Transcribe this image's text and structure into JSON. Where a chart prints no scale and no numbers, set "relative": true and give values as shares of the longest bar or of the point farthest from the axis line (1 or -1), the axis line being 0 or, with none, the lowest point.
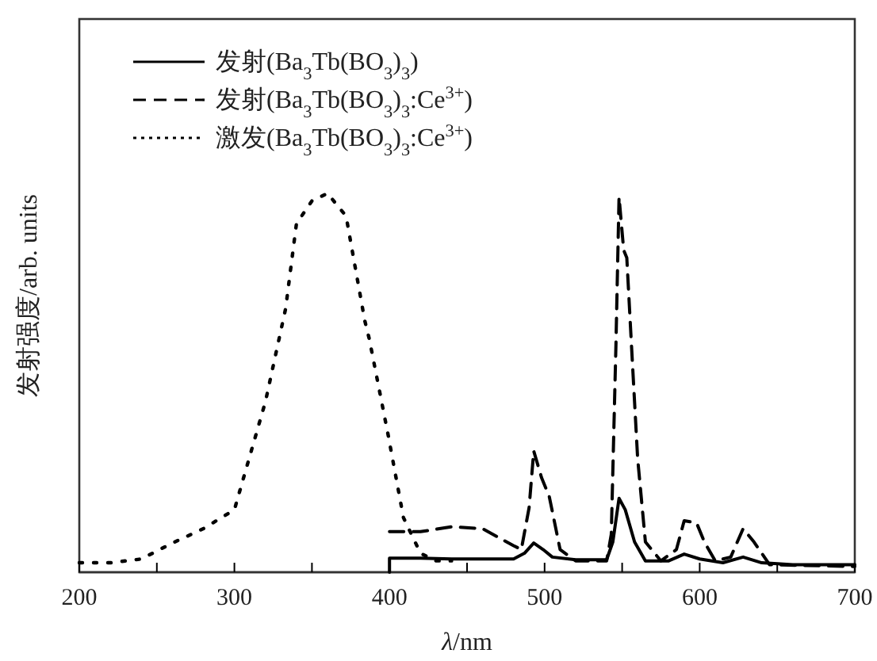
{
  "chart_data": {
    "type": "line",
    "relative": true,
    "xlabel": "λ/nm",
    "ylabel": "发射强度/arb. units",
    "xlim": [
      200,
      700
    ],
    "xticks": [
      200,
      {
        "value": 250,
        "label": null
      },
      300,
      {
        "value": 350,
        "label": null
      },
      400,
      {
        "value": 450,
        "label": null
      },
      500,
      {
        "value": 550,
        "label": null
      },
      600,
      {
        "value": 650,
        "label": null
      },
      700
    ],
    "legend": "top left",
    "tick_labels": "x",
    "series": [
      {
        "name": "发射(Ba$_{3}$Tb(BO$_{3}$)$_{3}$)",
        "color": "#000000",
        "line_style": "solid",
        "x": [
          400,
          400,
          420,
          440,
          460,
          480,
          487,
          493,
          499,
          505,
          520,
          540,
          544,
          548,
          552,
          558,
          565,
          580,
          590,
          600,
          615,
          628,
          640,
          660,
          700
        ],
        "values": [
          0,
          0.037,
          0.037,
          0.035,
          0.035,
          0.035,
          0.05,
          0.077,
          0.06,
          0.04,
          0.033,
          0.033,
          0.08,
          0.195,
          0.165,
          0.08,
          0.03,
          0.03,
          0.048,
          0.035,
          0.025,
          0.04,
          0.025,
          0.02,
          0.02
        ]
      },
      {
        "name": "发射(Ba$_{3}$Tb(BO$_{3}$)$_{3}$:Ce$^{3+}$)",
        "color": "#000000",
        "line_style": "dashed",
        "x": [
          400,
          420,
          440,
          460,
          480,
          485,
          490,
          493,
          498,
          503,
          510,
          520,
          540,
          543,
          546,
          548,
          551,
          553,
          556,
          560,
          565,
          575,
          585,
          590,
          598,
          603,
          610,
          620,
          628,
          635,
          645,
          700
        ],
        "values": [
          0.107,
          0.107,
          0.12,
          0.115,
          0.07,
          0.06,
          0.17,
          0.32,
          0.25,
          0.2,
          0.06,
          0.03,
          0.03,
          0.1,
          0.6,
          0.99,
          0.85,
          0.83,
          0.6,
          0.3,
          0.08,
          0.03,
          0.06,
          0.136,
          0.13,
          0.08,
          0.03,
          0.04,
          0.115,
          0.08,
          0.02,
          0.015
        ]
      },
      {
        "name": "激发(Ba$_{3}$Tb(BO$_{3}$)$_{3}$:Ce$^{3+}$)",
        "color": "#000000",
        "line_style": "dotted",
        "x": [
          200,
          220,
          240,
          260,
          280,
          300,
          320,
          333,
          340,
          350,
          360,
          372,
          384,
          387,
          399,
          409,
          420,
          430,
          440
        ],
        "values": [
          0.025,
          0.025,
          0.035,
          0.077,
          0.115,
          0.165,
          0.45,
          0.695,
          0.92,
          0.98,
          1,
          0.94,
          0.665,
          0.615,
          0.365,
          0.144,
          0.05,
          0.03,
          0.03
        ]
      }
    ]
  }
}
